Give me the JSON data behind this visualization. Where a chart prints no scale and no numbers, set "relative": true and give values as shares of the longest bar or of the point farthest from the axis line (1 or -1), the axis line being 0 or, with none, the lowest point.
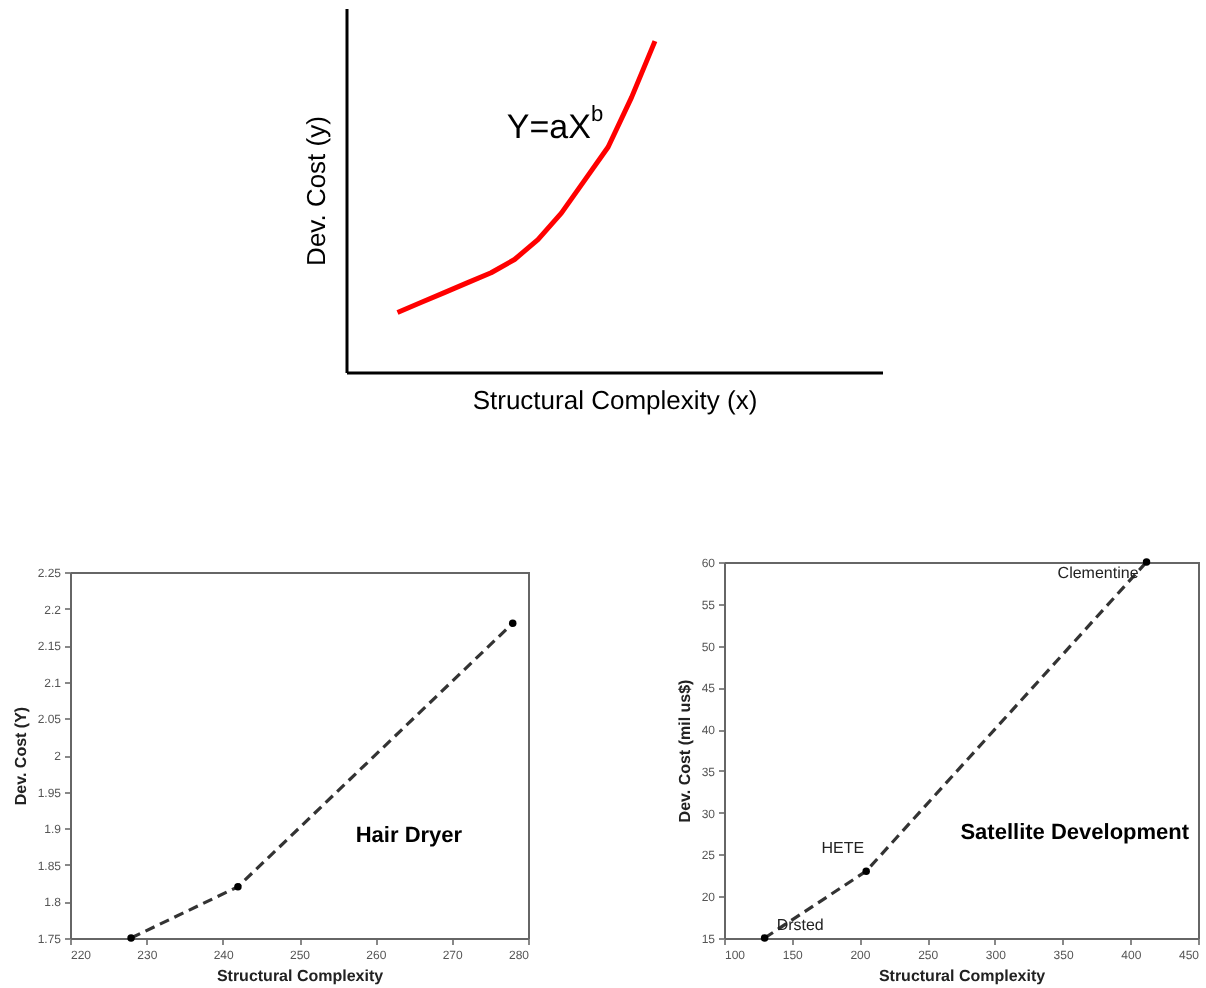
{
  "chart_data": [
    {
      "type": "line",
      "relative": true,
      "xlabel": "Structural Complexity (x)",
      "ylabel": "Dev. Cost (y)",
      "annotations": [
        "Y=aX$^{b}$"
      ],
      "categories": [
        null,
        null,
        null,
        null,
        null,
        null,
        null,
        null,
        null,
        null,
        null,
        null
      ],
      "series": [
        {
          "color": "#ff0000",
          "values": [
            0.18,
            0.21,
            0.24,
            0.27,
            0.3,
            0.34,
            0.4,
            0.48,
            0.58,
            0.68,
            0.83,
            1
          ]
        }
      ],
      "marker": "none",
      "line_style": "solid"
    },
    {
      "type": "line",
      "xlabel": "Structural Complexity",
      "ylabel": "Dev. Cost (Y)",
      "x": [
        228,
        242,
        278
      ],
      "series": [
        {
          "color": "#333333",
          "values": [
            1.75,
            1.82,
            2.18
          ]
        }
      ],
      "xlim": [
        220,
        280
      ],
      "xticks": [
        220,
        230,
        240,
        250,
        260,
        270,
        280
      ],
      "ylim": [
        1.75,
        2.25
      ],
      "yticks": [
        1.75,
        1.8,
        1.85,
        1.9,
        1.95,
        2,
        2.05,
        2.1,
        2.15,
        2.2,
        2.25
      ],
      "annotations": [
        "Hair Dryer"
      ],
      "marker": "circle",
      "line_style": "dashed"
    },
    {
      "type": "line",
      "xlabel": "Structural Complexity",
      "ylabel": "Dev. Cost (mil us$)",
      "x": [
        130,
        205,
        412
      ],
      "series": [
        {
          "color": "#333333",
          "values": [
            15,
            23,
            60
          ]
        }
      ],
      "xlim": [
        100,
        450
      ],
      "xticks": [
        100,
        150,
        200,
        250,
        300,
        350,
        400,
        450
      ],
      "ylim": [
        15,
        60
      ],
      "yticks": [
        15,
        20,
        25,
        30,
        35,
        40,
        45,
        50,
        55,
        60
      ],
      "annotations": [
        "Satellite Development",
        {
          "text": "Clementine",
          "x": 412,
          "y": 60
        },
        {
          "text": "HETE",
          "x": 205,
          "y": 23
        },
        {
          "text": "Drsted",
          "x": 130,
          "y": 15
        }
      ],
      "marker": "circle",
      "line_style": "dashed"
    }
  ]
}
